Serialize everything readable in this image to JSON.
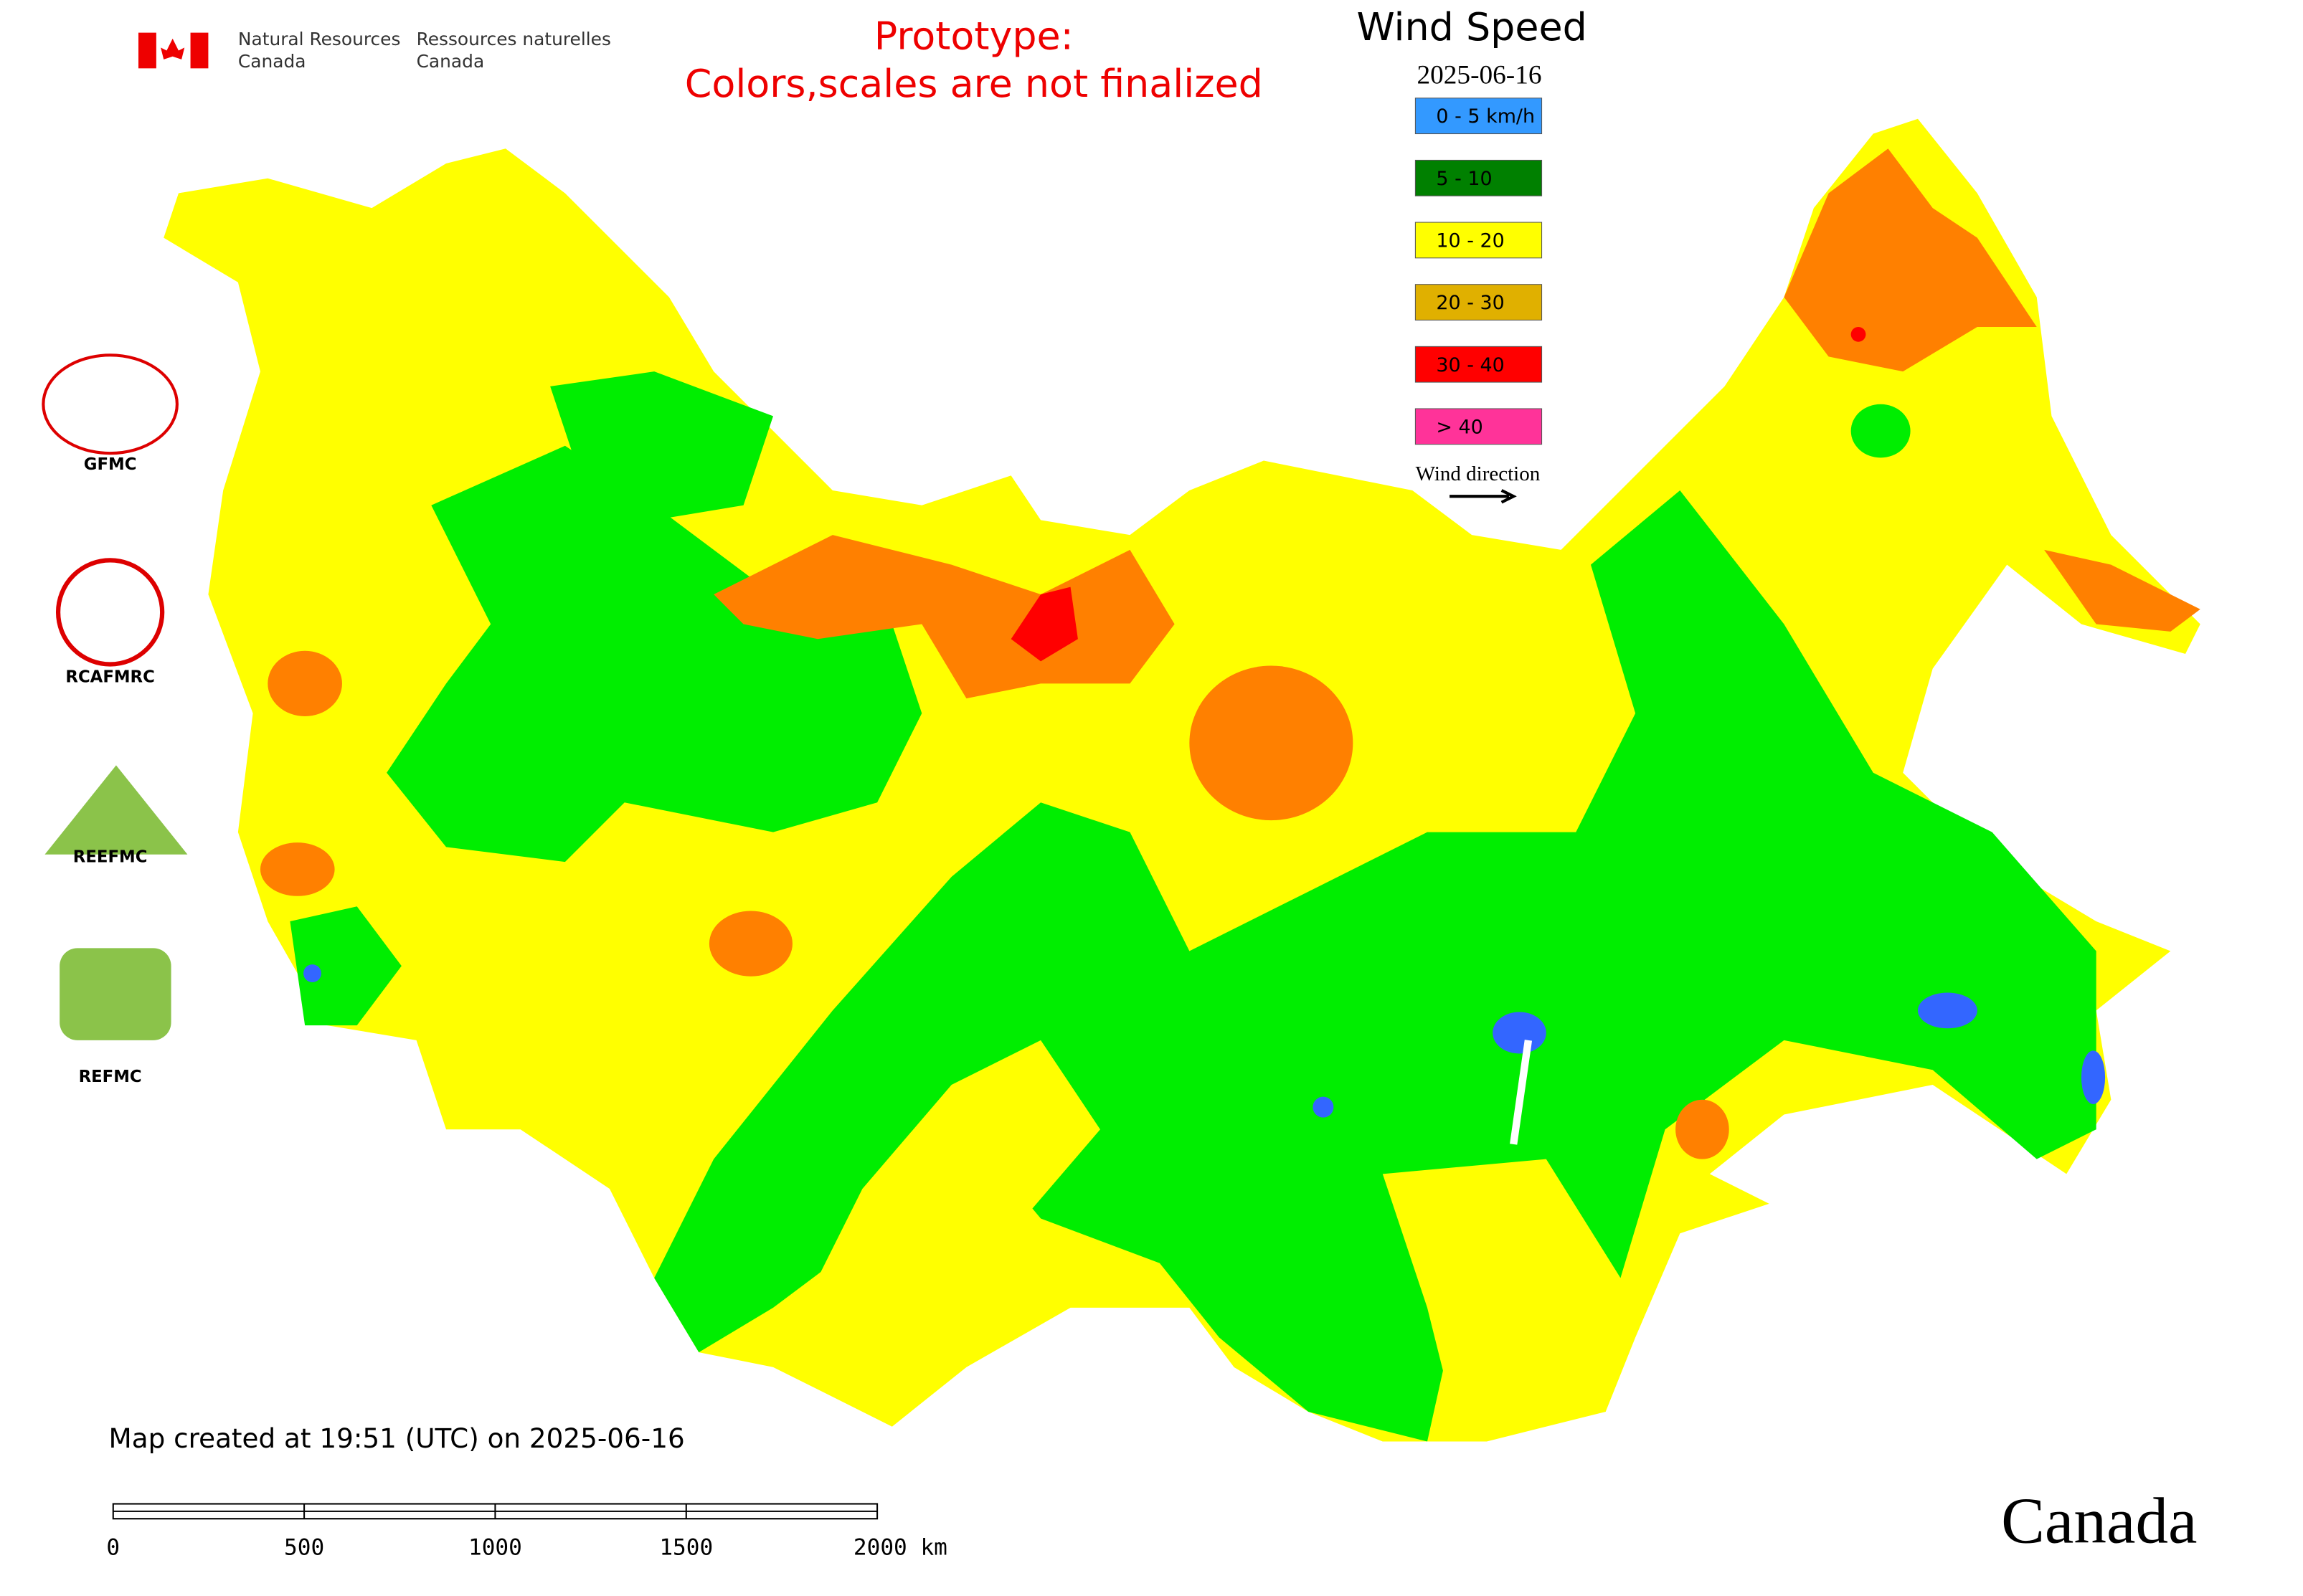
{
  "header": {
    "agency_en_1": "Natural Resources",
    "agency_en_2": "Canada",
    "agency_fr_1": "Ressources naturelles",
    "agency_fr_2": "Canada",
    "notice_1": "Prototype:",
    "notice_2": "Colors,scales are not finalized"
  },
  "legend": {
    "title": "Wind Speed",
    "date": "2025-06-16",
    "items": [
      {
        "label": "0 - 5 km/h",
        "color": "#3399ff"
      },
      {
        "label": "5 - 10",
        "color": "#008000"
      },
      {
        "label": "10 - 20",
        "color": "#ffff00"
      },
      {
        "label": "20 - 30",
        "color": "#e0b000"
      },
      {
        "label": "30 - 40",
        "color": "#ff0000"
      },
      {
        "label": "> 40",
        "color": "#ff3399"
      }
    ],
    "direction_label": "Wind direction"
  },
  "logos": [
    "GFMC",
    "RCAFMRC",
    "REEFMC",
    "REFMC"
  ],
  "footer": {
    "created": "Map created at 19:51 (UTC) on 2025-06-16",
    "scale_labels": [
      "0",
      "500",
      "1000",
      "1500",
      "2000 km"
    ],
    "wordmark": "Canada"
  }
}
